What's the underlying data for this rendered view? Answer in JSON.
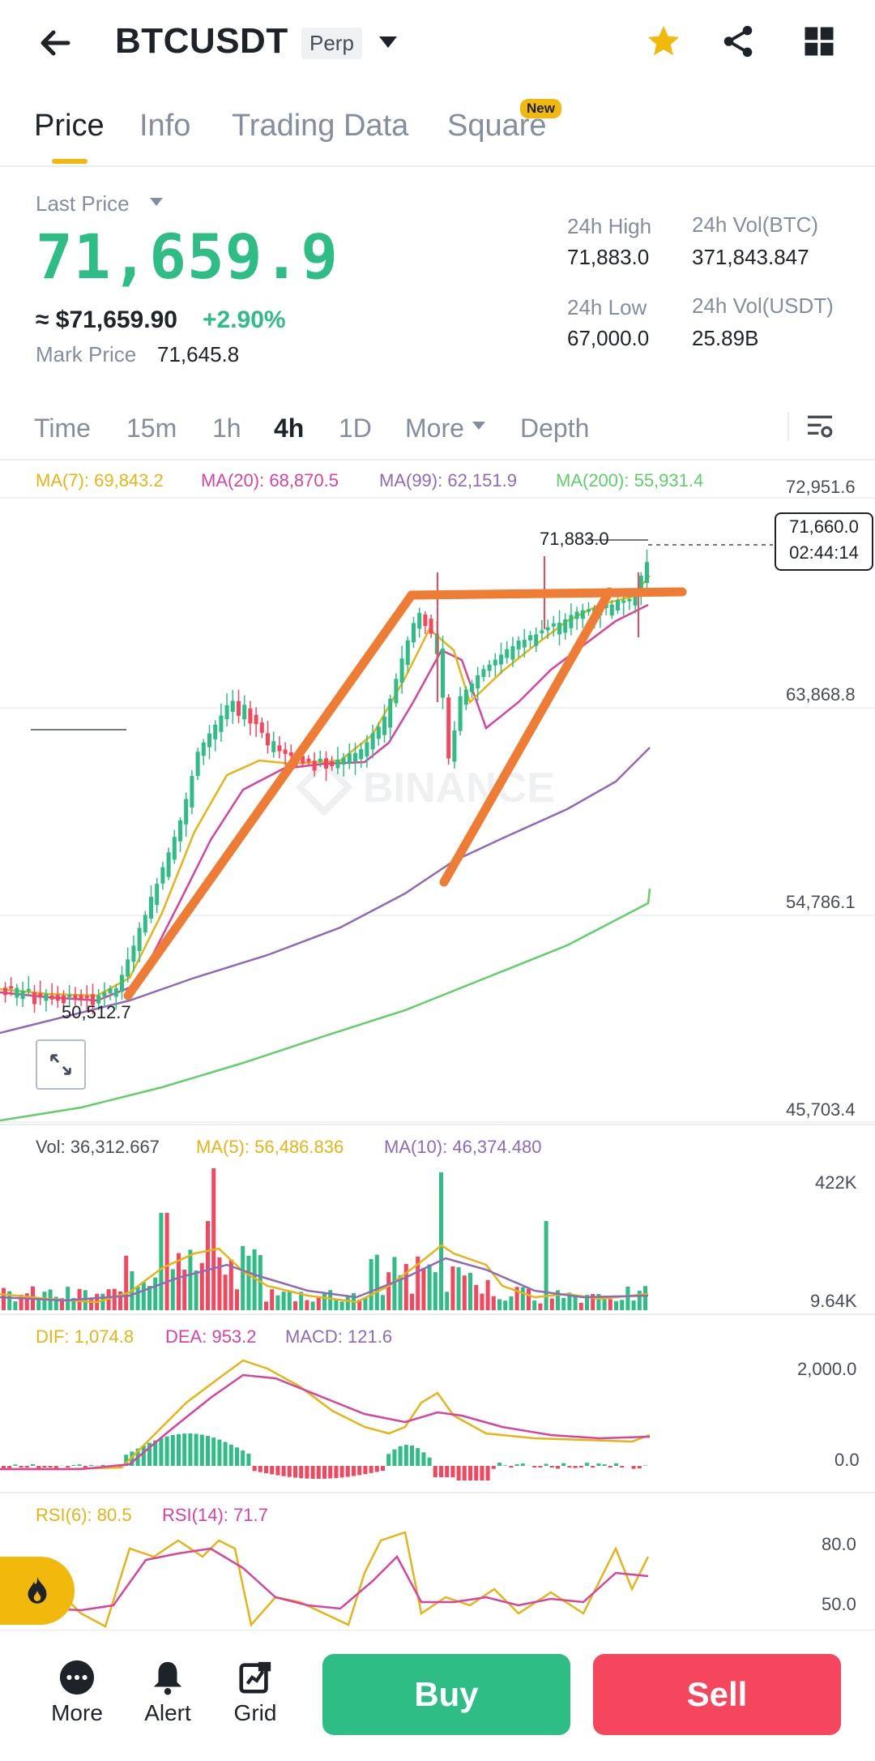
{
  "header": {
    "symbol": "BTCUSDT",
    "contract": "Perp"
  },
  "tabs": [
    {
      "label": "Price"
    },
    {
      "label": "Info"
    },
    {
      "label": "Trading Data"
    },
    {
      "label": "Square",
      "badge": "New"
    }
  ],
  "price": {
    "last_price_label": "Last Price",
    "last_price": "71,659.9",
    "usd": "≈ $71,659.90",
    "change": "+2.90%",
    "mark_label": "Mark Price",
    "mark_value": "71,645.8"
  },
  "stats": {
    "high_label": "24h High",
    "high_value": "71,883.0",
    "low_label": "24h Low",
    "low_value": "67,000.0",
    "volbtc_label": "24h Vol(BTC)",
    "volbtc_value": "371,843.847",
    "volusdt_label": "24h Vol(USDT)",
    "volusdt_value": "25.89B"
  },
  "timeframes": [
    {
      "label": "Time"
    },
    {
      "label": "15m"
    },
    {
      "label": "1h"
    },
    {
      "label": "4h"
    },
    {
      "label": "1D"
    },
    {
      "label": "More"
    },
    {
      "label": "Depth"
    }
  ],
  "main_chart": {
    "ma7": "MA(7): 69,843.2",
    "ma20": "MA(20): 68,870.5",
    "ma99": "MA(99): 62,151.9",
    "ma200": "MA(200): 55,931.4",
    "y_ticks": [
      "72,951.6",
      "63,868.8",
      "54,786.1",
      "45,703.4"
    ],
    "high_marker": "71,883.0",
    "low_marker": "50,512.7",
    "current_price": "71,660.0",
    "countdown": "02:44:14",
    "watermark": "BINANCE"
  },
  "volume_chart": {
    "vol": "Vol: 36,312.667",
    "ma5": "MA(5): 56,486.836",
    "ma10": "MA(10): 46,374.480",
    "y_ticks": [
      "422K",
      "9.64K"
    ]
  },
  "macd_chart": {
    "dif": "DIF: 1,074.8",
    "dea": "DEA: 953.2",
    "macd": "MACD: 121.6",
    "y_ticks": [
      "2,000.0",
      "0.0"
    ]
  },
  "rsi_chart": {
    "rsi6": "RSI(6): 80.5",
    "rsi14": "RSI(14): 71.7",
    "y_ticks": [
      "80.0",
      "50.0"
    ]
  },
  "bottom_bar": {
    "more": "More",
    "alert": "Alert",
    "grid": "Grid",
    "buy": "Buy",
    "sell": "Sell"
  },
  "colors": {
    "green": "#2ebd85",
    "red": "#f6465d",
    "ma7": "#e7b416",
    "ma20": "#d6449e",
    "ma99": "#8e6bb8",
    "ma200": "#5fd068",
    "accent": "#f0b90b",
    "trend": "#ef7c34"
  }
}
